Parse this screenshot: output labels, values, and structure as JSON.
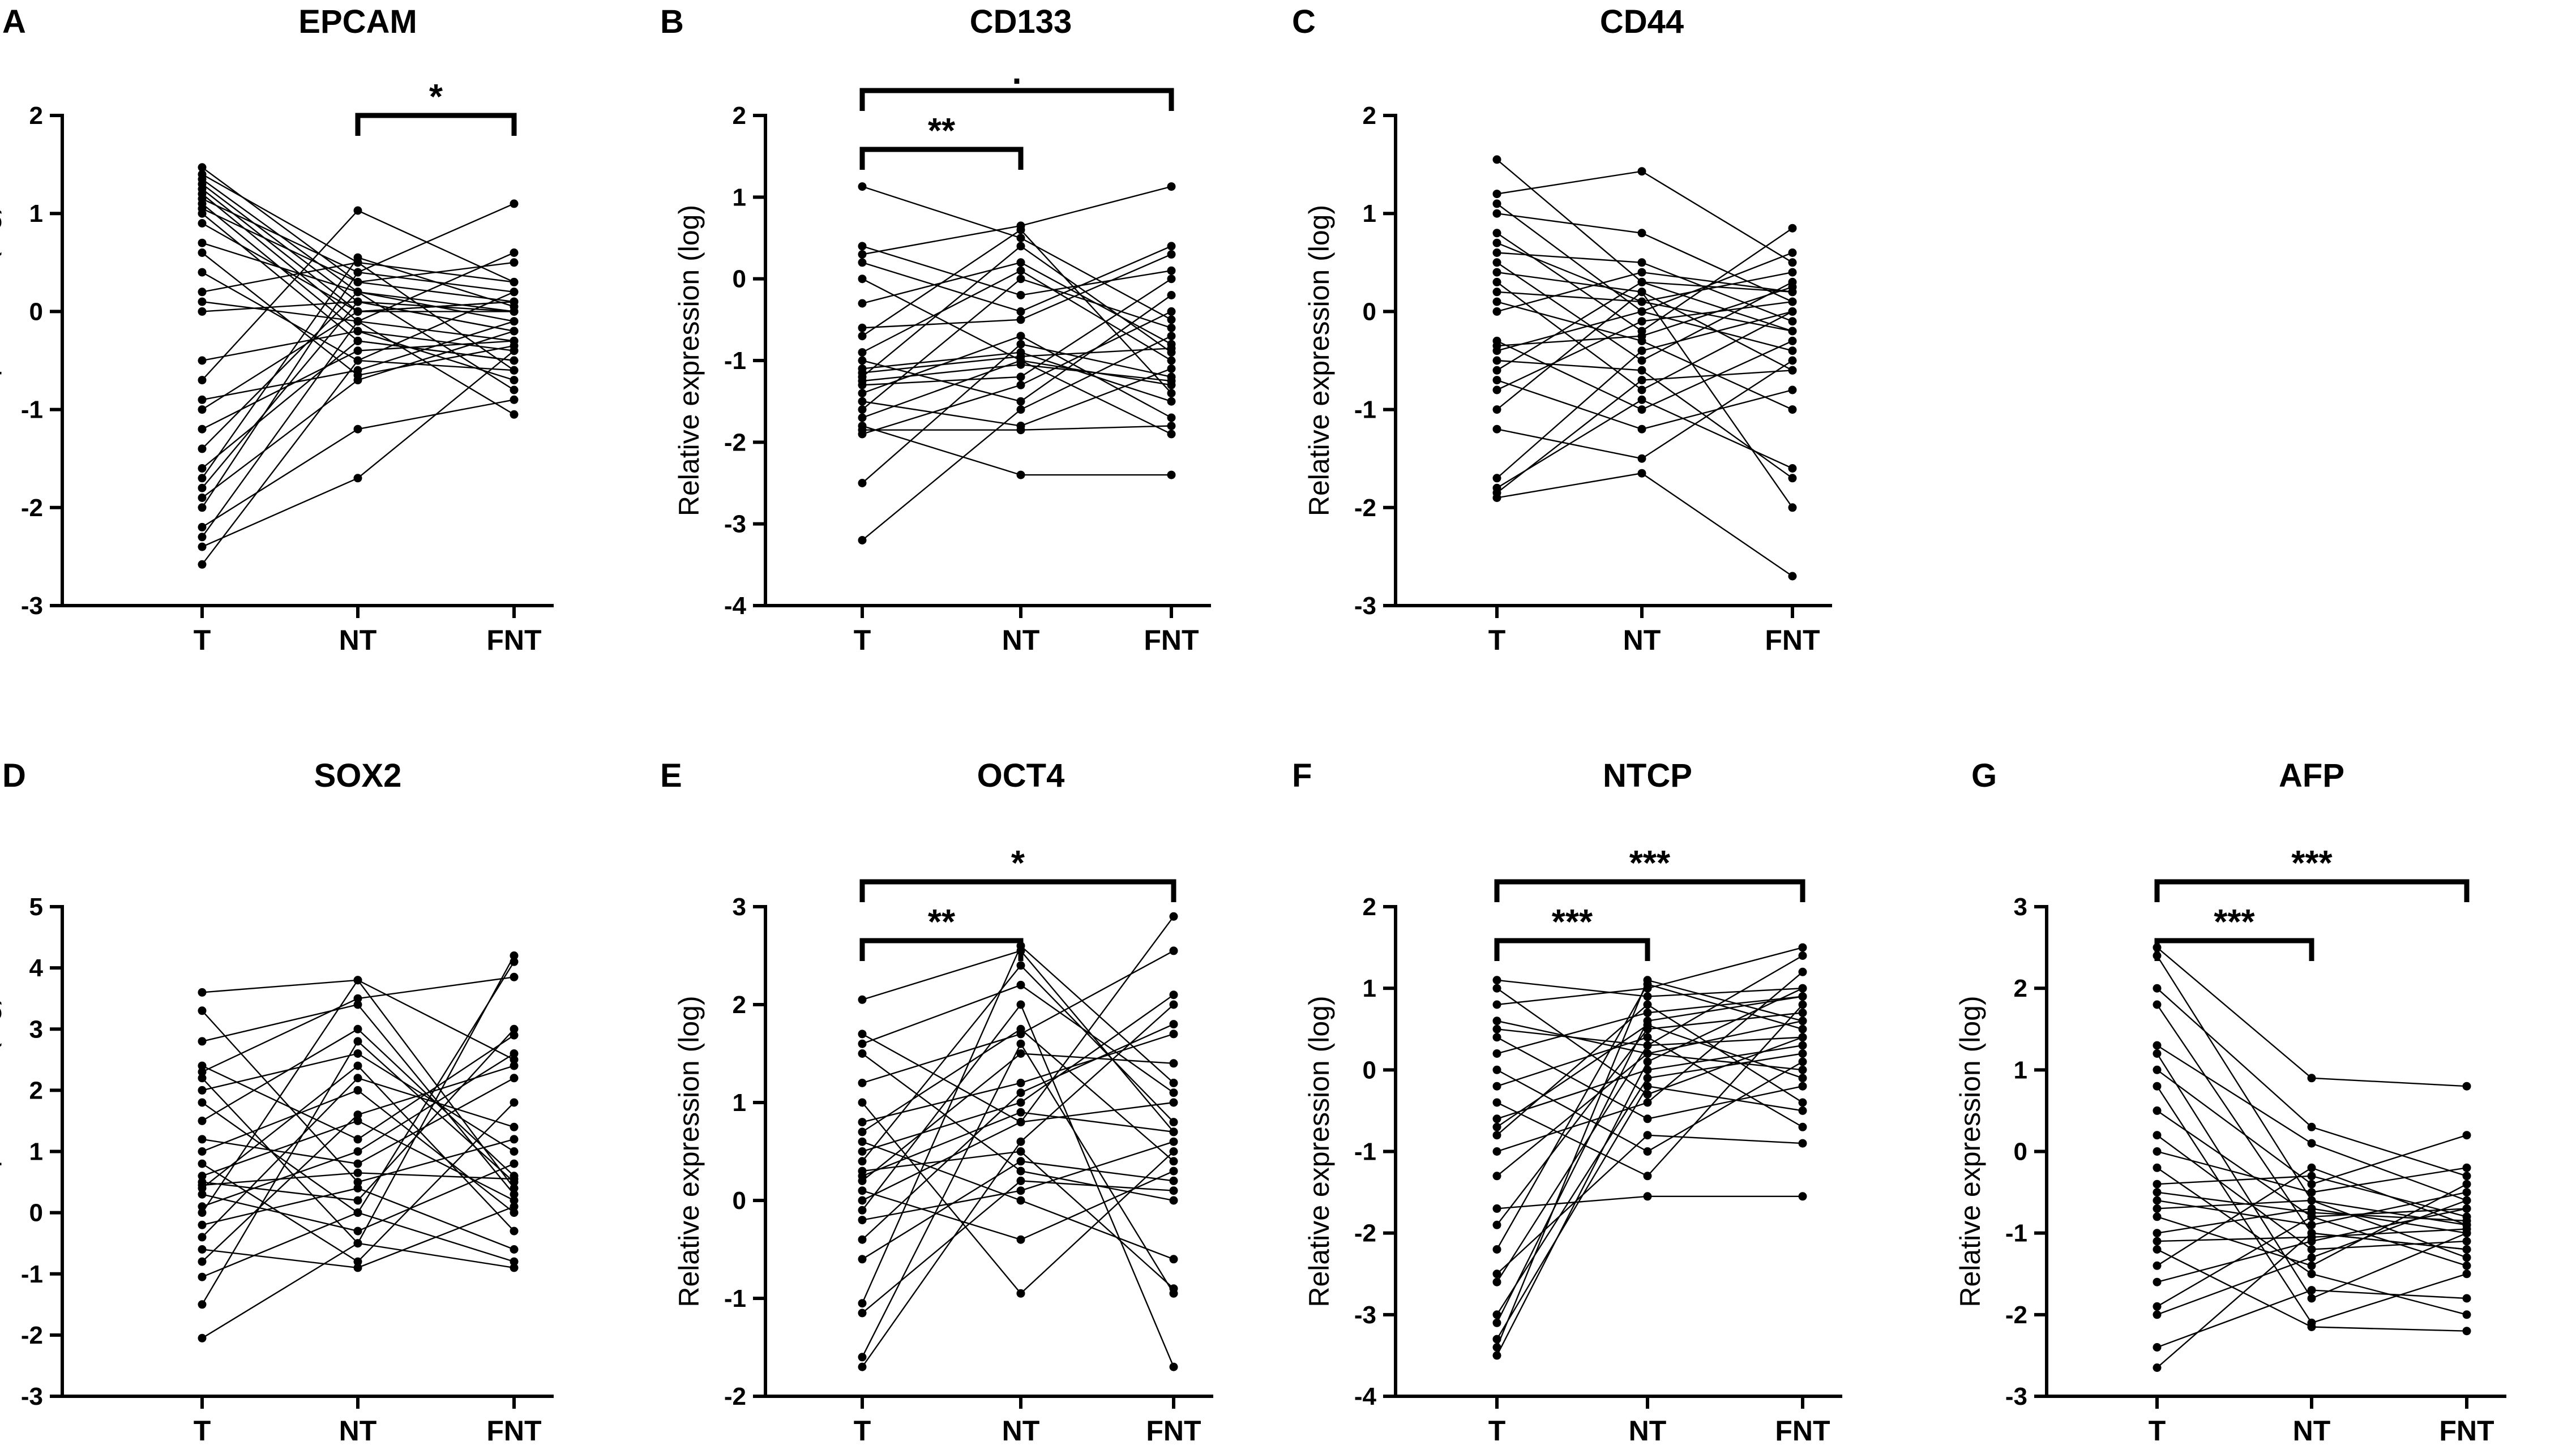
{
  "figure": {
    "groups": [
      "T",
      "NT",
      "FNT"
    ],
    "ylabel": "Relative expression (log)"
  },
  "chart_data": [
    {
      "letter": "A",
      "title": "EPCAM",
      "type": "line",
      "ylim": [
        -3,
        2
      ],
      "yticks": [
        "2",
        "1",
        "0",
        "-1",
        "-2",
        "-3"
      ],
      "categories": [
        "T",
        "NT",
        "FNT"
      ],
      "comparisons": [
        {
          "from": "NT",
          "to": "FNT",
          "label": "*"
        }
      ],
      "series": [
        [
          1.47,
          0.3,
          0.1
        ],
        [
          1.4,
          0.5,
          0.3
        ],
        [
          1.35,
          0.2,
          0.0
        ],
        [
          1.3,
          0.1,
          -0.2
        ],
        [
          1.25,
          0.0,
          0.1
        ],
        [
          1.2,
          -0.1,
          -0.3
        ],
        [
          1.15,
          0.4,
          0.2
        ],
        [
          1.1,
          -0.2,
          -0.4
        ],
        [
          1.05,
          0.3,
          0.5
        ],
        [
          1.0,
          -0.3,
          -0.5
        ],
        [
          0.9,
          0.0,
          0.0
        ],
        [
          0.7,
          0.2,
          -0.1
        ],
        [
          0.4,
          -0.5,
          0.2
        ],
        [
          0.2,
          0.5,
          -0.6
        ],
        [
          0.1,
          -0.1,
          0.6
        ],
        [
          0.0,
          0.1,
          -0.2
        ],
        [
          -0.5,
          -0.2,
          -0.7
        ],
        [
          -0.7,
          1.03,
          0.3
        ],
        [
          -0.9,
          -0.6,
          -0.1
        ],
        [
          -1.0,
          0.0,
          0.1
        ],
        [
          -1.2,
          -0.4,
          -0.3
        ],
        [
          -1.4,
          0.2,
          -0.8
        ],
        [
          -1.6,
          -0.3,
          -0.5
        ],
        [
          -1.8,
          0.1,
          0.0
        ],
        [
          -1.9,
          -0.7,
          -0.2
        ],
        [
          -2.0,
          0.4,
          1.1
        ],
        [
          -2.2,
          -1.2,
          -0.9
        ],
        [
          -2.3,
          -0.1,
          -1.05
        ],
        [
          -2.4,
          -1.7,
          -0.4
        ],
        [
          -2.58,
          -0.5,
          -0.6
        ],
        [
          -1.7,
          0.55,
          0.05
        ],
        [
          0.6,
          -0.65,
          -0.35
        ]
      ]
    },
    {
      "letter": "B",
      "title": "CD133",
      "type": "line",
      "ylim": [
        -4,
        2
      ],
      "yticks": [
        "2",
        "1",
        "0",
        "-1",
        "-2",
        "-3",
        "-4"
      ],
      "categories": [
        "T",
        "NT",
        "FNT"
      ],
      "comparisons": [
        {
          "from": "T",
          "to": "NT",
          "label": "**"
        },
        {
          "from": "T",
          "to": "FNT",
          "label": "."
        }
      ],
      "series": [
        [
          1.13,
          0.5,
          -0.5
        ],
        [
          0.4,
          -0.2,
          0.1
        ],
        [
          0.3,
          0.65,
          1.13
        ],
        [
          0.0,
          -1.0,
          -1.3
        ],
        [
          -0.3,
          0.2,
          -0.8
        ],
        [
          -0.6,
          -0.5,
          0.3
        ],
        [
          -0.9,
          0.1,
          -1.0
        ],
        [
          -1.0,
          -1.5,
          -0.2
        ],
        [
          -1.1,
          -0.9,
          -1.5
        ],
        [
          -1.2,
          0.4,
          -0.9
        ],
        [
          -1.3,
          -1.2,
          0.0
        ],
        [
          -1.4,
          -0.7,
          -1.7
        ],
        [
          -1.5,
          -1.8,
          -1.1
        ],
        [
          -1.6,
          0.0,
          -0.6
        ],
        [
          -1.7,
          -1.0,
          -1.9
        ],
        [
          -1.8,
          -2.4,
          -2.4
        ],
        [
          -1.9,
          -1.3,
          -0.4
        ],
        [
          -2.5,
          -0.8,
          -1.2
        ],
        [
          -3.2,
          -1.6,
          -0.7
        ],
        [
          -1.15,
          -0.95,
          -0.85
        ],
        [
          -1.25,
          -1.05,
          -1.25
        ],
        [
          0.2,
          -0.4,
          0.4
        ],
        [
          -0.7,
          0.6,
          -1.4
        ],
        [
          -1.85,
          -1.85,
          -1.8
        ]
      ]
    },
    {
      "letter": "C",
      "title": "CD44",
      "type": "line",
      "ylim": [
        -3,
        2
      ],
      "yticks": [
        "2",
        "1",
        "0",
        "-1",
        "-2",
        "-3"
      ],
      "categories": [
        "T",
        "NT",
        "FNT"
      ],
      "comparisons": [],
      "series": [
        [
          1.55,
          0.3,
          0.2
        ],
        [
          1.2,
          1.43,
          0.5
        ],
        [
          1.1,
          0.0,
          -0.4
        ],
        [
          1.0,
          0.8,
          0.1
        ],
        [
          0.8,
          -0.2,
          0.85
        ],
        [
          0.6,
          0.5,
          -0.1
        ],
        [
          0.5,
          -0.5,
          0.3
        ],
        [
          0.4,
          0.2,
          -0.6
        ],
        [
          0.3,
          -0.8,
          0.0
        ],
        [
          0.2,
          0.1,
          0.4
        ],
        [
          0.1,
          -0.3,
          -1.0
        ],
        [
          0.0,
          0.4,
          0.2
        ],
        [
          -0.3,
          -1.0,
          -0.3
        ],
        [
          -0.4,
          0.0,
          0.6
        ],
        [
          -0.5,
          -0.6,
          -1.7
        ],
        [
          -0.6,
          0.3,
          -0.2
        ],
        [
          -0.7,
          -1.2,
          -0.8
        ],
        [
          -0.8,
          -0.1,
          0.1
        ],
        [
          -1.0,
          0.2,
          -2.0
        ],
        [
          -1.2,
          -1.5,
          -0.5
        ],
        [
          -1.7,
          -0.4,
          0.0
        ],
        [
          -1.8,
          -0.9,
          -1.6
        ],
        [
          -1.9,
          -1.65,
          -2.7
        ],
        [
          -1.85,
          -0.7,
          -0.6
        ],
        [
          0.7,
          0.1,
          -0.2
        ],
        [
          -0.35,
          -0.25,
          0.25
        ]
      ]
    },
    {
      "letter": "D",
      "title": "SOX2",
      "type": "line",
      "ylim": [
        -3,
        5
      ],
      "yticks": [
        "5",
        "4",
        "3",
        "2",
        "1",
        "0",
        "-1",
        "-2",
        "-3"
      ],
      "categories": [
        "T",
        "NT",
        "FNT"
      ],
      "comparisons": [],
      "series": [
        [
          3.6,
          3.8,
          2.5
        ],
        [
          3.3,
          0.5,
          1.2
        ],
        [
          2.8,
          3.4,
          0.3
        ],
        [
          2.4,
          1.2,
          2.9
        ],
        [
          2.2,
          -0.5,
          4.2
        ],
        [
          2.0,
          2.6,
          1.0
        ],
        [
          1.8,
          0.0,
          -0.8
        ],
        [
          1.5,
          3.0,
          0.6
        ],
        [
          1.2,
          0.8,
          2.2
        ],
        [
          1.0,
          2.0,
          0.0
        ],
        [
          0.8,
          -0.8,
          1.8
        ],
        [
          0.6,
          1.5,
          0.2
        ],
        [
          0.5,
          0.2,
          3.0
        ],
        [
          0.4,
          2.4,
          -0.3
        ],
        [
          0.3,
          -0.3,
          0.8
        ],
        [
          0.1,
          1.0,
          2.6
        ],
        [
          0.0,
          3.8,
          0.4
        ],
        [
          -0.2,
          0.4,
          -0.6
        ],
        [
          -0.4,
          2.2,
          1.4
        ],
        [
          -0.6,
          -0.9,
          0.1
        ],
        [
          -0.8,
          1.6,
          2.4
        ],
        [
          -1.05,
          0.0,
          4.1
        ],
        [
          -1.5,
          2.8,
          0.5
        ],
        [
          -2.05,
          -0.5,
          -0.9
        ],
        [
          2.3,
          3.5,
          3.85
        ],
        [
          0.45,
          0.65,
          0.55
        ]
      ]
    },
    {
      "letter": "E",
      "title": "OCT4",
      "type": "line",
      "ylim": [
        -2,
        3
      ],
      "yticks": [
        "3",
        "2",
        "1",
        "0",
        "-1",
        "-2"
      ],
      "categories": [
        "T",
        "NT",
        "FNT"
      ],
      "comparisons": [
        {
          "from": "T",
          "to": "NT",
          "label": "**"
        },
        {
          "from": "T",
          "to": "FNT",
          "label": "*"
        }
      ],
      "series": [
        [
          2.05,
          2.55,
          0.7
        ],
        [
          1.7,
          0.8,
          2.9
        ],
        [
          1.6,
          2.2,
          1.1
        ],
        [
          1.5,
          0.3,
          0.0
        ],
        [
          1.2,
          1.7,
          2.55
        ],
        [
          1.0,
          -0.95,
          0.5
        ],
        [
          0.8,
          1.2,
          1.7
        ],
        [
          0.6,
          0.0,
          -0.6
        ],
        [
          0.5,
          1.0,
          2.1
        ],
        [
          0.4,
          2.4,
          0.8
        ],
        [
          0.3,
          0.5,
          -0.9
        ],
        [
          0.2,
          1.5,
          1.4
        ],
        [
          0.1,
          -0.4,
          0.3
        ],
        [
          0.0,
          0.8,
          1.0
        ],
        [
          -0.1,
          2.0,
          -1.7
        ],
        [
          -0.2,
          0.1,
          0.6
        ],
        [
          -0.4,
          1.1,
          1.8
        ],
        [
          -0.6,
          0.4,
          0.2
        ],
        [
          -1.05,
          2.6,
          1.2
        ],
        [
          -1.15,
          0.2,
          0.1
        ],
        [
          -1.6,
          1.6,
          -0.95
        ],
        [
          -1.7,
          0.6,
          2.0
        ],
        [
          0.7,
          1.75,
          0.4
        ],
        [
          0.25,
          0.9,
          0.7
        ]
      ]
    },
    {
      "letter": "F",
      "title": "NTCP",
      "type": "line",
      "ylim": [
        -4,
        2
      ],
      "yticks": [
        "2",
        "1",
        "0",
        "-1",
        "-2",
        "-3",
        "-4"
      ],
      "categories": [
        "T",
        "NT",
        "FNT"
      ],
      "comparisons": [
        {
          "from": "T",
          "to": "NT",
          "label": "***"
        },
        {
          "from": "T",
          "to": "FNT",
          "label": "***"
        }
      ],
      "series": [
        [
          1.1,
          0.9,
          1.0
        ],
        [
          1.0,
          -0.3,
          0.4
        ],
        [
          0.8,
          1.0,
          1.5
        ],
        [
          0.6,
          0.2,
          0.6
        ],
        [
          0.4,
          -0.6,
          -0.2
        ],
        [
          0.2,
          0.7,
          0.9
        ],
        [
          0.0,
          -1.0,
          0.1
        ],
        [
          -0.2,
          0.4,
          -0.7
        ],
        [
          -0.4,
          -1.3,
          0.8
        ],
        [
          -0.6,
          0.0,
          0.3
        ],
        [
          -0.8,
          0.8,
          -0.4
        ],
        [
          -1.0,
          -0.4,
          1.2
        ],
        [
          -1.3,
          0.2,
          0.0
        ],
        [
          -1.7,
          -1.55,
          -1.55
        ],
        [
          -1.9,
          0.5,
          0.7
        ],
        [
          -2.2,
          1.05,
          0.5
        ],
        [
          -2.5,
          -0.8,
          -0.9
        ],
        [
          -2.6,
          0.3,
          1.4
        ],
        [
          -3.0,
          -0.1,
          0.2
        ],
        [
          -3.1,
          0.6,
          0.9
        ],
        [
          -3.3,
          -0.2,
          -0.5
        ],
        [
          -3.4,
          1.1,
          0.6
        ],
        [
          -3.5,
          0.1,
          1.0
        ],
        [
          0.5,
          0.3,
          0.4
        ],
        [
          -0.7,
          0.55,
          -0.1
        ]
      ]
    },
    {
      "letter": "G",
      "title": "AFP",
      "type": "line",
      "ylim": [
        -3,
        3
      ],
      "yticks": [
        "3",
        "2",
        "1",
        "0",
        "-1",
        "-2",
        "-3"
      ],
      "categories": [
        "T",
        "NT",
        "FNT"
      ],
      "comparisons": [
        {
          "from": "T",
          "to": "NT",
          "label": "***"
        },
        {
          "from": "T",
          "to": "FNT",
          "label": "***"
        }
      ],
      "series": [
        [
          2.5,
          0.9,
          0.8
        ],
        [
          2.4,
          -0.6,
          -0.9
        ],
        [
          2.0,
          0.3,
          -0.3
        ],
        [
          1.8,
          -1.0,
          -1.2
        ],
        [
          1.3,
          0.1,
          -0.6
        ],
        [
          1.2,
          -1.8,
          -1.0
        ],
        [
          1.0,
          -0.4,
          0.2
        ],
        [
          0.8,
          -2.1,
          -1.5
        ],
        [
          0.5,
          -0.8,
          -0.7
        ],
        [
          0.2,
          -1.2,
          -1.1
        ],
        [
          0.0,
          -0.5,
          -0.2
        ],
        [
          -0.2,
          -1.5,
          -2.0
        ],
        [
          -0.4,
          -0.3,
          -0.8
        ],
        [
          -0.6,
          -0.9,
          -0.5
        ],
        [
          -0.7,
          -0.6,
          -1.3
        ],
        [
          -0.8,
          -1.4,
          -0.4
        ],
        [
          -1.0,
          -0.7,
          -1.0
        ],
        [
          -1.2,
          -2.15,
          -2.2
        ],
        [
          -1.4,
          -0.2,
          -0.9
        ],
        [
          -1.6,
          -1.1,
          -0.7
        ],
        [
          -1.9,
          -0.8,
          -1.4
        ],
        [
          -2.0,
          -1.3,
          -0.6
        ],
        [
          -2.4,
          -1.7,
          -1.8
        ],
        [
          -2.65,
          -1.0,
          -1.2
        ],
        [
          -0.5,
          -0.75,
          -0.85
        ],
        [
          -1.1,
          -1.05,
          -0.95
        ]
      ]
    }
  ]
}
